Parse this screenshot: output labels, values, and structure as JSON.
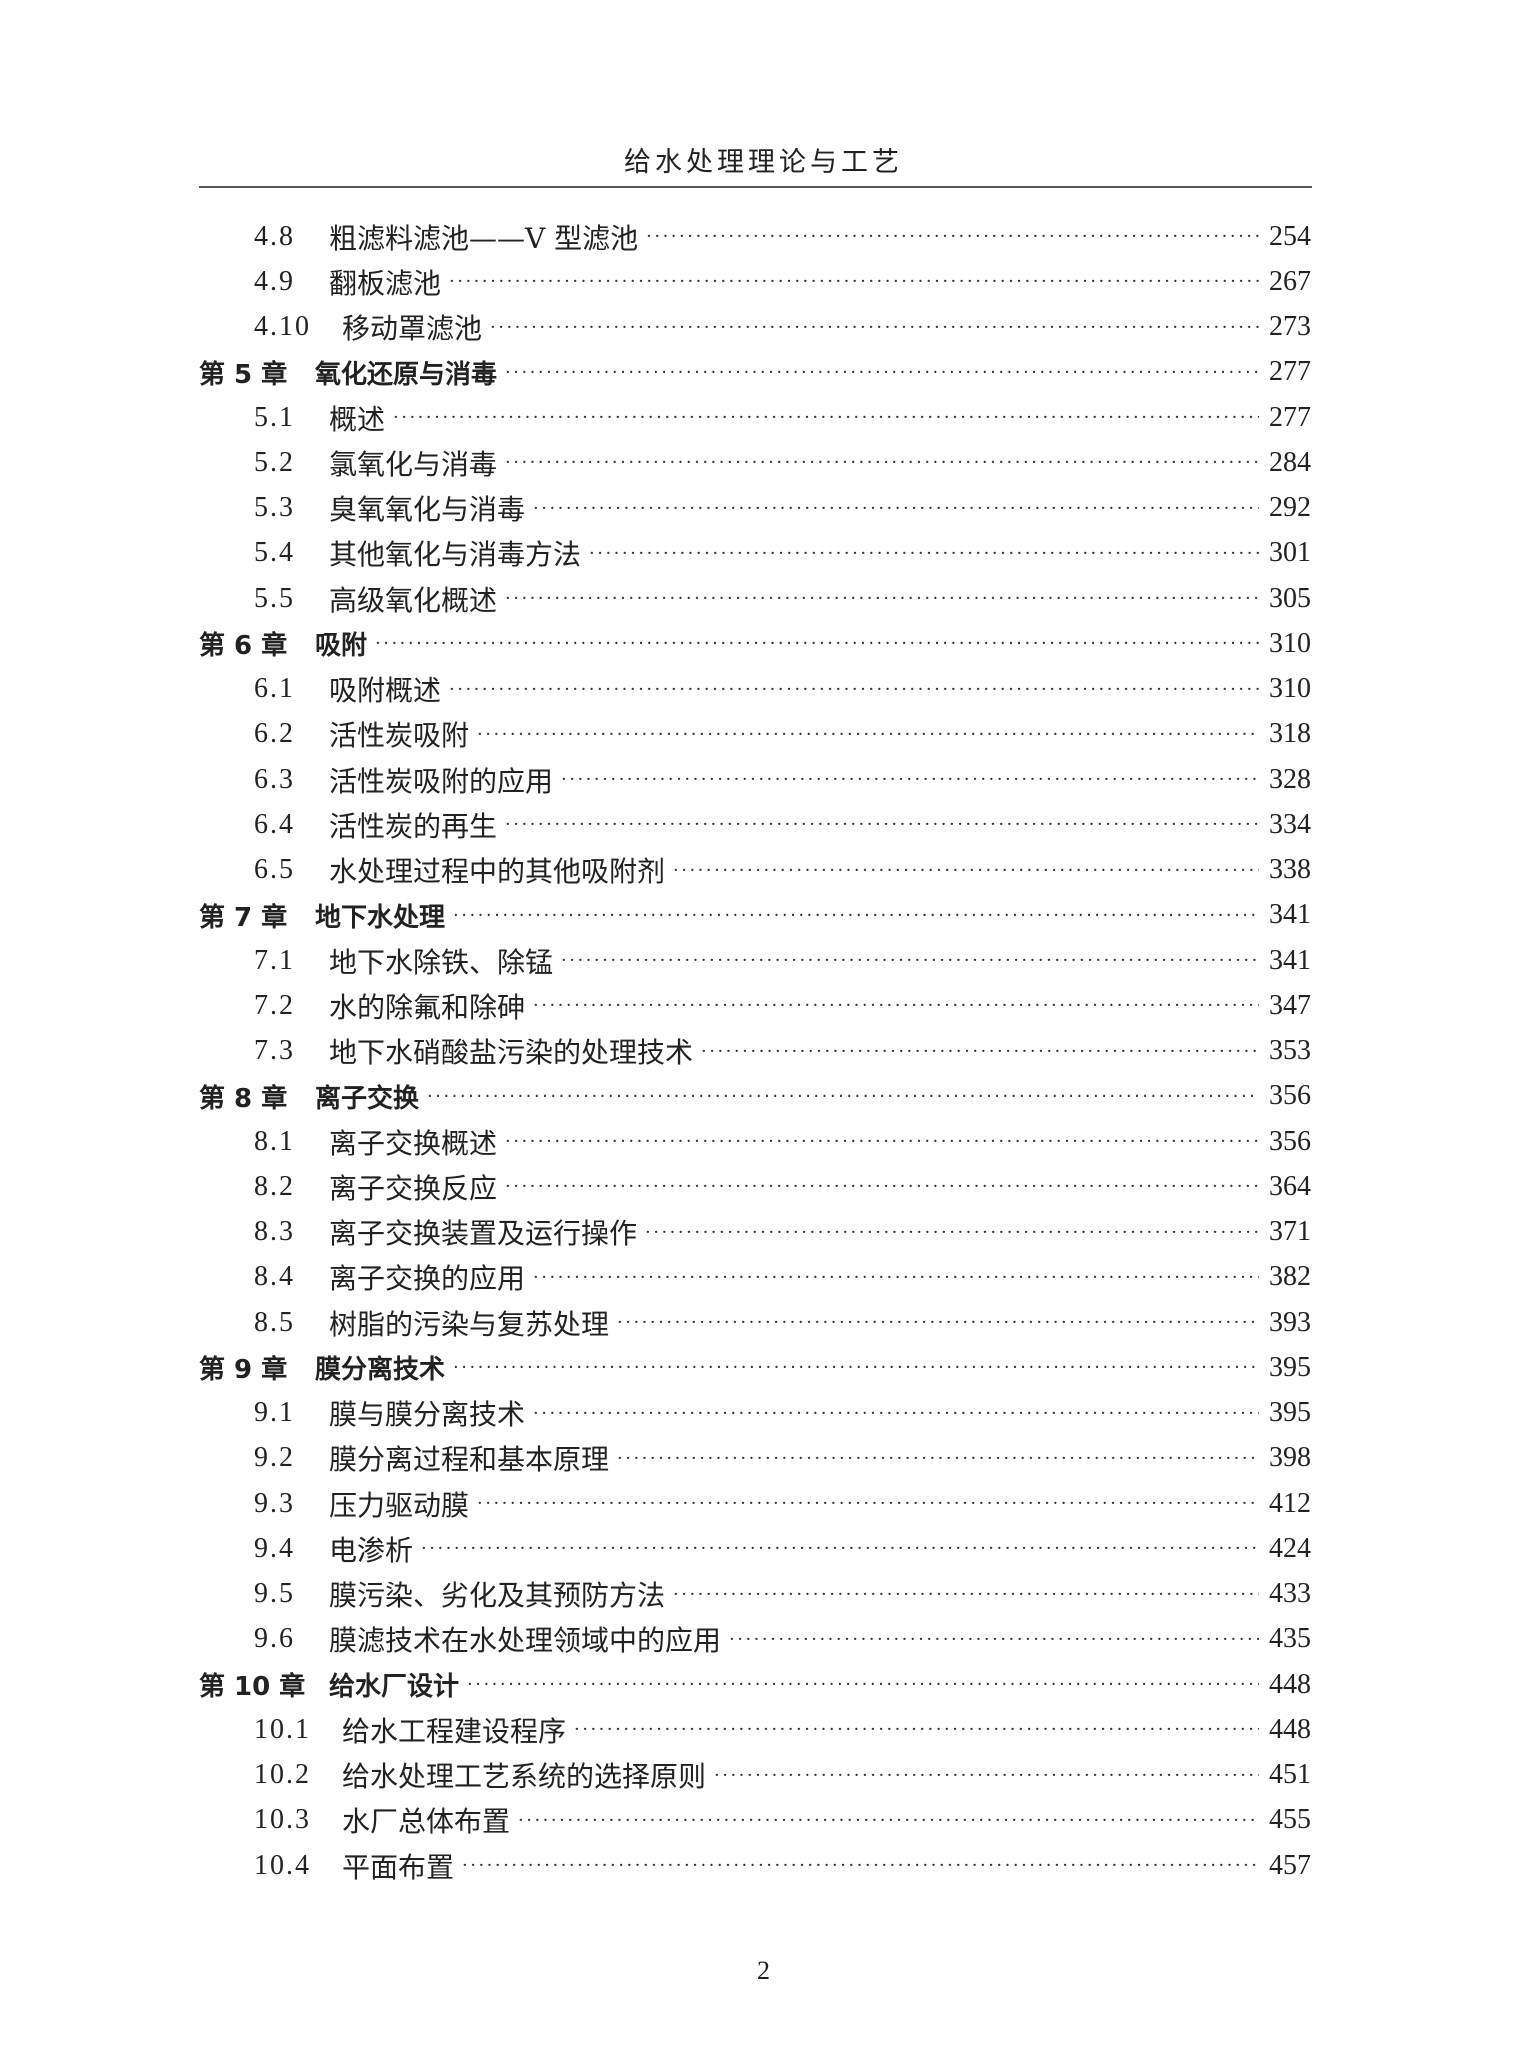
{
  "header": {
    "title": "给水处理理论与工艺"
  },
  "toc": [
    {
      "level": "sec",
      "num": "4.8",
      "title": "粗滤料滤池——V 型滤池",
      "page": "254"
    },
    {
      "level": "sec",
      "num": "4.9",
      "title": "翻板滤池",
      "page": "267"
    },
    {
      "level": "sec",
      "num": "4.10",
      "title": "移动罩滤池",
      "page": "273"
    },
    {
      "level": "ch",
      "num": "第 5 章",
      "title": "氧化还原与消毒",
      "page": "277"
    },
    {
      "level": "sec",
      "num": "5.1",
      "title": "概述",
      "page": "277"
    },
    {
      "level": "sec",
      "num": "5.2",
      "title": "氯氧化与消毒",
      "page": "284"
    },
    {
      "level": "sec",
      "num": "5.3",
      "title": "臭氧氧化与消毒",
      "page": "292"
    },
    {
      "level": "sec",
      "num": "5.4",
      "title": "其他氧化与消毒方法",
      "page": "301"
    },
    {
      "level": "sec",
      "num": "5.5",
      "title": "高级氧化概述",
      "page": "305"
    },
    {
      "level": "ch",
      "num": "第 6 章",
      "title": "吸附",
      "page": "310"
    },
    {
      "level": "sec",
      "num": "6.1",
      "title": "吸附概述",
      "page": "310"
    },
    {
      "level": "sec",
      "num": "6.2",
      "title": "活性炭吸附",
      "page": "318"
    },
    {
      "level": "sec",
      "num": "6.3",
      "title": "活性炭吸附的应用",
      "page": "328"
    },
    {
      "level": "sec",
      "num": "6.4",
      "title": "活性炭的再生",
      "page": "334"
    },
    {
      "level": "sec",
      "num": "6.5",
      "title": "水处理过程中的其他吸附剂",
      "page": "338"
    },
    {
      "level": "ch",
      "num": "第 7 章",
      "title": "地下水处理",
      "page": "341"
    },
    {
      "level": "sec",
      "num": "7.1",
      "title": "地下水除铁、除锰",
      "page": "341"
    },
    {
      "level": "sec",
      "num": "7.2",
      "title": "水的除氟和除砷",
      "page": "347"
    },
    {
      "level": "sec",
      "num": "7.3",
      "title": "地下水硝酸盐污染的处理技术",
      "page": "353"
    },
    {
      "level": "ch",
      "num": "第 8 章",
      "title": "离子交换",
      "page": "356"
    },
    {
      "level": "sec",
      "num": "8.1",
      "title": "离子交换概述",
      "page": "356"
    },
    {
      "level": "sec",
      "num": "8.2",
      "title": "离子交换反应",
      "page": "364"
    },
    {
      "level": "sec",
      "num": "8.3",
      "title": "离子交换装置及运行操作",
      "page": "371"
    },
    {
      "level": "sec",
      "num": "8.4",
      "title": "离子交换的应用",
      "page": "382"
    },
    {
      "level": "sec",
      "num": "8.5",
      "title": "树脂的污染与复苏处理",
      "page": "393"
    },
    {
      "level": "ch",
      "num": "第 9 章",
      "title": "膜分离技术",
      "page": "395"
    },
    {
      "level": "sec",
      "num": "9.1",
      "title": "膜与膜分离技术",
      "page": "395"
    },
    {
      "level": "sec",
      "num": "9.2",
      "title": "膜分离过程和基本原理",
      "page": "398"
    },
    {
      "level": "sec",
      "num": "9.3",
      "title": "压力驱动膜",
      "page": "412"
    },
    {
      "level": "sec",
      "num": "9.4",
      "title": "电渗析",
      "page": "424"
    },
    {
      "level": "sec",
      "num": "9.5",
      "title": "膜污染、劣化及其预防方法",
      "page": "433"
    },
    {
      "level": "sec",
      "num": "9.6",
      "title": "膜滤技术在水处理领域中的应用",
      "page": "435"
    },
    {
      "level": "ch",
      "num": "第 10 章",
      "title": "给水厂设计",
      "page": "448"
    },
    {
      "level": "sec",
      "num": "10.1",
      "title": "给水工程建设程序",
      "page": "448"
    },
    {
      "level": "sec",
      "num": "10.2",
      "title": "给水处理工艺系统的选择原则",
      "page": "451"
    },
    {
      "level": "sec",
      "num": "10.3",
      "title": "水厂总体布置",
      "page": "455"
    },
    {
      "level": "sec",
      "num": "10.4",
      "title": "平面布置",
      "page": "457"
    }
  ],
  "footer": {
    "page_number": "2"
  }
}
